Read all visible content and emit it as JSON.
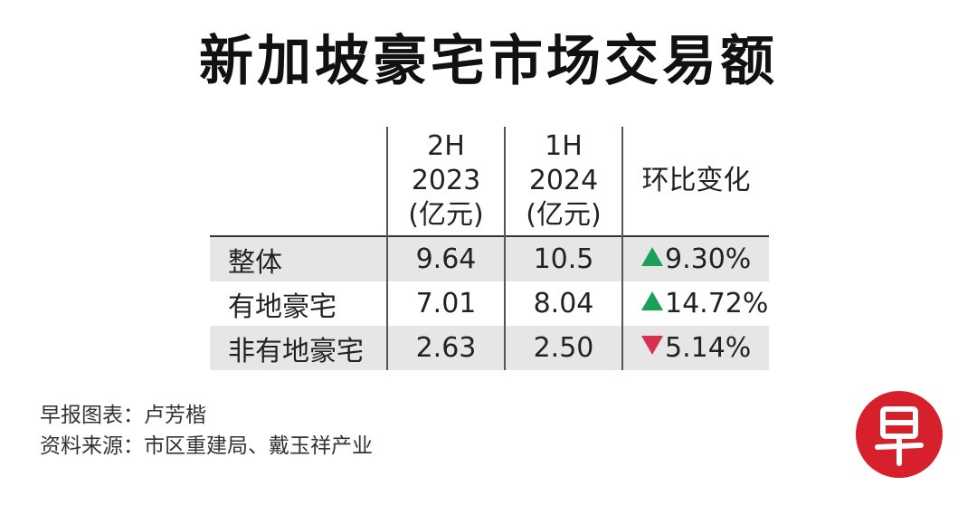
{
  "title": "新加坡豪宅市场交易额",
  "colors": {
    "increase": "#1aa05a",
    "decrease": "#d9304e",
    "row_band": "#e6e6e6",
    "logo": "#d6202b"
  },
  "chart_data": {
    "type": "table",
    "title": "新加坡豪宅市场交易额",
    "columns": [
      {
        "key": "period_a",
        "lines": [
          "2H",
          "2023",
          "(亿元)"
        ]
      },
      {
        "key": "period_b",
        "lines": [
          "1H",
          "2024",
          "(亿元)"
        ]
      },
      {
        "key": "change",
        "label": "环比变化"
      }
    ],
    "rows": [
      {
        "label": "整体",
        "period_a": "9.64",
        "period_b": "10.5",
        "change": "9.30%",
        "direction": "up"
      },
      {
        "label": "有地豪宅",
        "period_a": "7.01",
        "period_b": "8.04",
        "change": "14.72%",
        "direction": "up"
      },
      {
        "label": "非有地豪宅",
        "period_a": "2.63",
        "period_b": "2.50",
        "change": "5.14%",
        "direction": "down"
      }
    ]
  },
  "footer": {
    "credit": "早报图表：卢芳楷",
    "source": "资料来源：市区重建局、戴玉祥产业"
  },
  "logo": {
    "icon": "zaobao-logo-icon",
    "glyph": "早"
  }
}
